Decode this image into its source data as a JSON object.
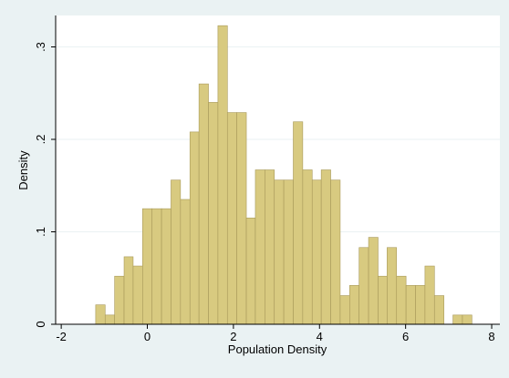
{
  "chart_data": {
    "type": "histogram",
    "x_label": "Population Density",
    "y_label": "Density",
    "bins": [
      -1.2,
      -0.98,
      -0.76,
      -0.54,
      -0.33,
      -0.11,
      0.11,
      0.33,
      0.55,
      0.77,
      0.99,
      1.2,
      1.42,
      1.64,
      1.86,
      2.08,
      2.3,
      2.51,
      2.73,
      2.95,
      3.17,
      3.39,
      3.61,
      3.83,
      4.04,
      4.26,
      4.48,
      4.7,
      4.92,
      5.14,
      5.36,
      5.57,
      5.79,
      6.01,
      6.23,
      6.45,
      6.67,
      6.89,
      7.1,
      7.32,
      7.54
    ],
    "values": [
      0.021,
      0.01,
      0.052,
      0.073,
      0.063,
      0.125,
      0.125,
      0.125,
      0.156,
      0.135,
      0.208,
      0.26,
      0.24,
      0.323,
      0.229,
      0.229,
      0.115,
      0.167,
      0.167,
      0.156,
      0.156,
      0.219,
      0.167,
      0.156,
      0.167,
      0.156,
      0.031,
      0.042,
      0.083,
      0.094,
      0.052,
      0.083,
      0.052,
      0.042,
      0.042,
      0.063,
      0.031,
      0,
      0.01,
      0.01
    ],
    "color": "#d8ca80",
    "edge_color": "#a8995a",
    "xlim": [
      -2.13,
      8.19
    ],
    "ylim": [
      0,
      0.334
    ],
    "xticks": [
      -2,
      0,
      2,
      4,
      6,
      8
    ],
    "yticks": [
      0,
      {
        "value": 0.1,
        "label": ".1"
      },
      {
        "value": 0.2,
        "label": ".2"
      },
      {
        "value": 0.3,
        "label": ".3"
      }
    ],
    "grid": true
  }
}
